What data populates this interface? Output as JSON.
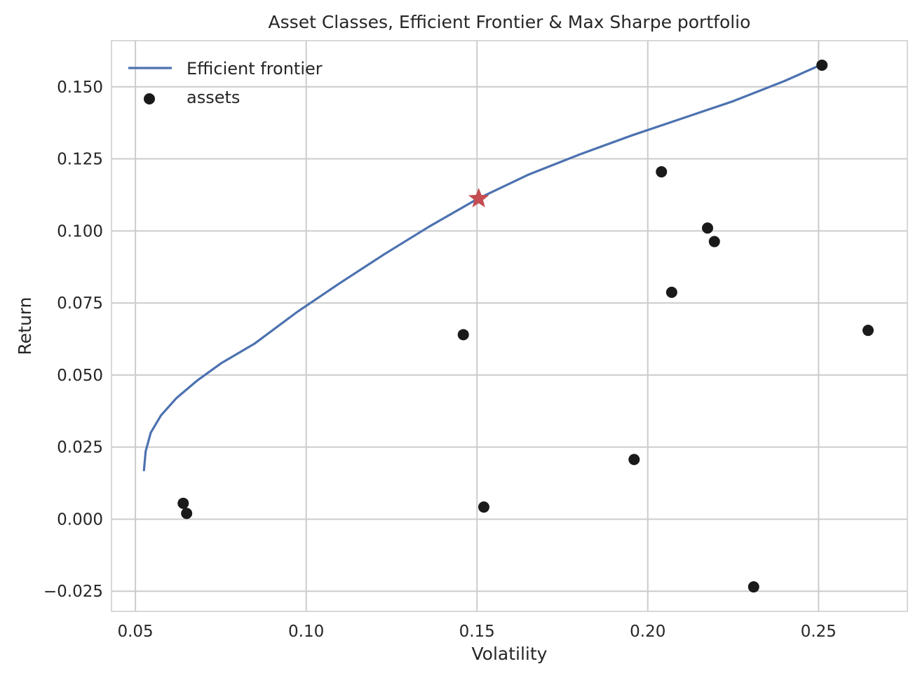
{
  "chart_data": {
    "type": "scatter",
    "title": "Asset Classes, Efficient Frontier & Max Sharpe portfolio",
    "xlabel": "Volatility",
    "ylabel": "Return",
    "xlim": [
      0.043,
      0.276
    ],
    "ylim": [
      -0.032,
      0.166
    ],
    "xticks": [
      0.05,
      0.1,
      0.15,
      0.2,
      0.25
    ],
    "xtick_labels": [
      "0.05",
      "0.10",
      "0.15",
      "0.20",
      "0.25"
    ],
    "yticks": [
      -0.025,
      0.0,
      0.025,
      0.05,
      0.075,
      0.1,
      0.125,
      0.15
    ],
    "ytick_labels": [
      "−0.025",
      "0.000",
      "0.025",
      "0.050",
      "0.075",
      "0.100",
      "0.125",
      "0.150"
    ],
    "grid": true,
    "legend": {
      "placement": "top-left",
      "entries": [
        "Efficient frontier",
        "assets"
      ]
    },
    "series": [
      {
        "name": "Efficient frontier",
        "kind": "line",
        "color": "#4C72B0",
        "x": [
          0.0525,
          0.053,
          0.0545,
          0.0575,
          0.062,
          0.068,
          0.075,
          0.085,
          0.0975,
          0.11,
          0.123,
          0.136,
          0.15,
          0.165,
          0.18,
          0.195,
          0.21,
          0.225,
          0.24,
          0.2505
        ],
        "y": [
          0.017,
          0.0235,
          0.03,
          0.036,
          0.042,
          0.048,
          0.054,
          0.061,
          0.072,
          0.082,
          0.092,
          0.1015,
          0.111,
          0.1195,
          0.1265,
          0.133,
          0.139,
          0.145,
          0.152,
          0.1575
        ]
      },
      {
        "name": "assets",
        "kind": "scatter",
        "color": "#1a1a1a",
        "x": [
          0.064,
          0.065,
          0.146,
          0.152,
          0.196,
          0.204,
          0.207,
          0.2175,
          0.2195,
          0.231,
          0.251,
          0.2645
        ],
        "y": [
          0.0055,
          0.002,
          0.064,
          0.0042,
          0.0207,
          0.1205,
          0.0787,
          0.101,
          0.0963,
          -0.0235,
          0.1575,
          0.0655
        ]
      }
    ],
    "annotations": [
      {
        "kind": "max-sharpe-star",
        "x": 0.1505,
        "y": 0.1112,
        "color": "#C44E52"
      }
    ]
  }
}
